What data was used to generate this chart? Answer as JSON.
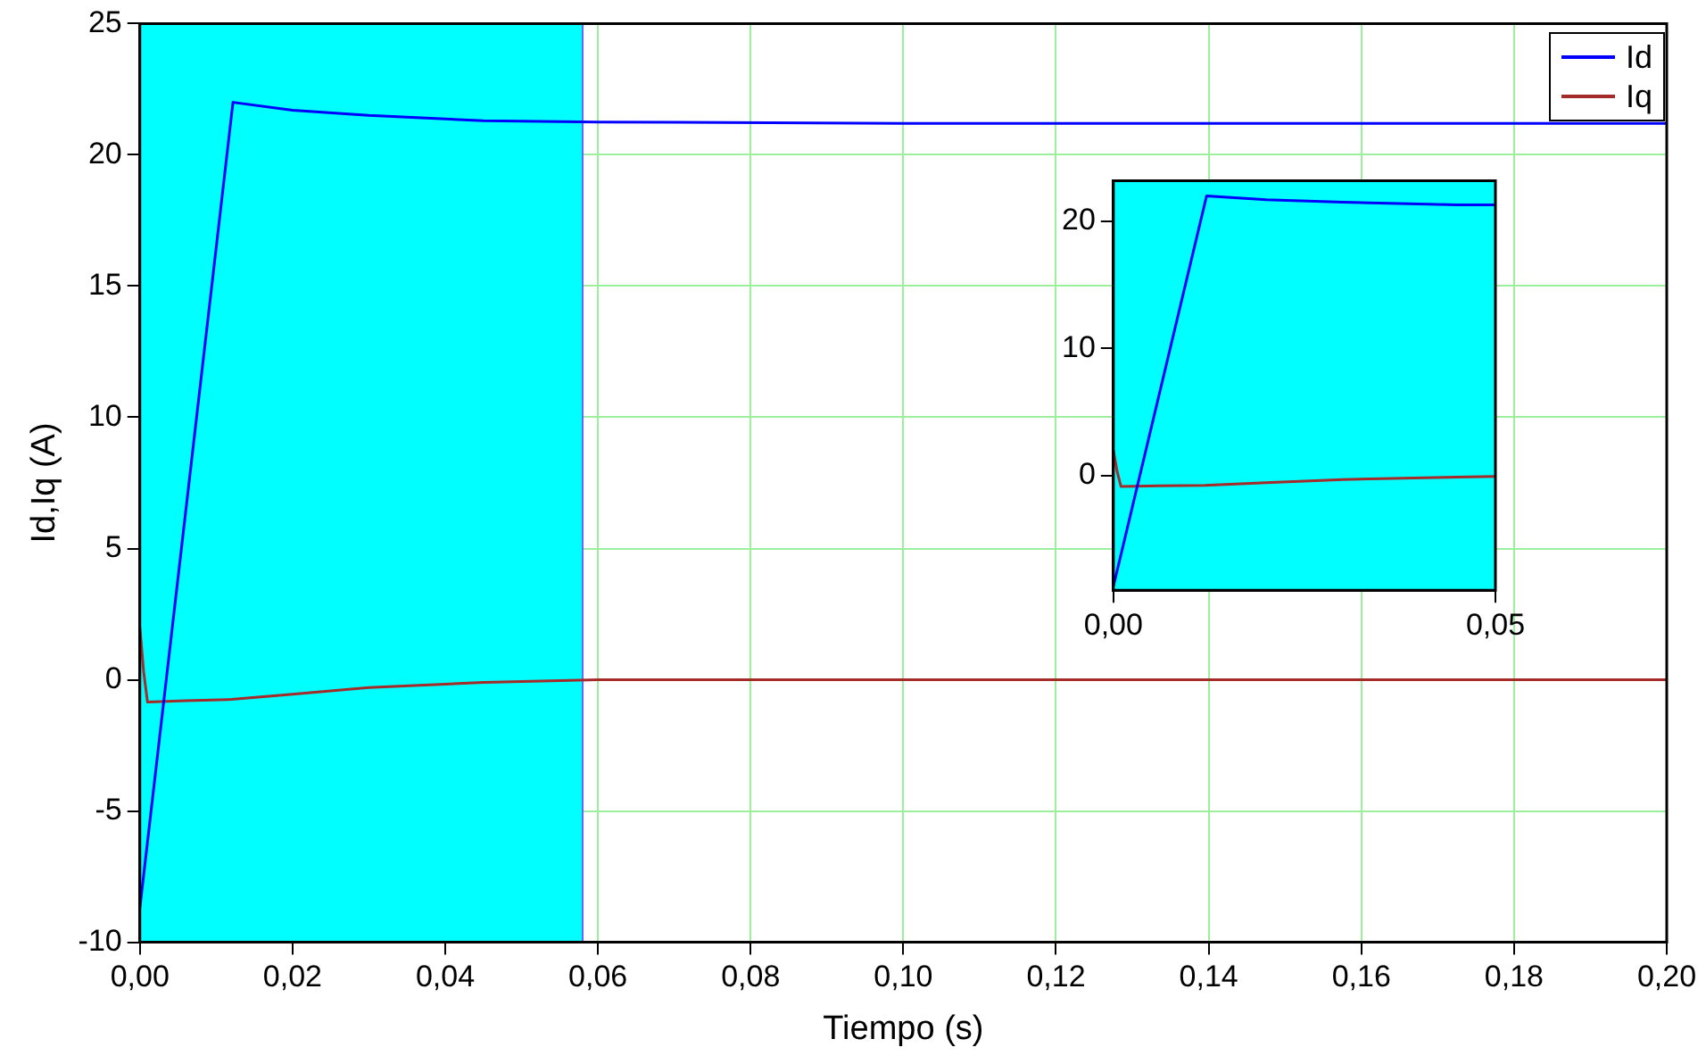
{
  "chart_data": [
    {
      "type": "line",
      "xlabel": "Tiempo (s)",
      "ylabel": "Id,Iq (A)",
      "xlim": [
        0,
        0.2
      ],
      "ylim": [
        -10,
        25
      ],
      "xticks": [
        {
          "value": 0,
          "label": "0,00"
        },
        {
          "value": 0.02,
          "label": "0,02"
        },
        {
          "value": 0.04,
          "label": "0,04"
        },
        {
          "value": 0.06,
          "label": "0,06"
        },
        {
          "value": 0.08,
          "label": "0,08"
        },
        {
          "value": 0.1,
          "label": "0,10"
        },
        {
          "value": 0.12,
          "label": "0,12"
        },
        {
          "value": 0.14,
          "label": "0,14"
        },
        {
          "value": 0.16,
          "label": "0,16"
        },
        {
          "value": 0.18,
          "label": "0,18"
        },
        {
          "value": 0.2,
          "label": "0,20"
        }
      ],
      "yticks": [
        -10,
        -5,
        0,
        5,
        10,
        15,
        20,
        25
      ],
      "grid": true,
      "legend": "top right",
      "marker": "none",
      "line_style": "solid",
      "bands": [
        {
          "axis": "x",
          "from": 0,
          "to": 0.058,
          "color": "#00ffff"
        }
      ],
      "series": [
        {
          "name": "Id",
          "color": "#0000ff",
          "x": [
            0,
            0.0122,
            0.02,
            0.03,
            0.045,
            0.06,
            0.1,
            0.2
          ],
          "values": [
            -8.7,
            22,
            21.7,
            21.5,
            21.3,
            21.25,
            21.2,
            21.2
          ]
        },
        {
          "name": "Iq",
          "color": "#a52a2a",
          "x": [
            0,
            0.0005,
            0.001,
            0.006,
            0.012,
            0.02,
            0.03,
            0.045,
            0.06,
            0.1,
            0.2
          ],
          "values": [
            2,
            0.3,
            -0.85,
            -0.8,
            -0.75,
            -0.55,
            -0.3,
            -0.1,
            0,
            0,
            0
          ]
        }
      ]
    },
    {
      "type": "line",
      "xlim": [
        0,
        0.05
      ],
      "ylim": [
        -9,
        23.2
      ],
      "xticks": [
        {
          "value": 0,
          "label": "0,00"
        },
        {
          "value": 0.05,
          "label": "0,05"
        }
      ],
      "yticks": [
        0,
        10,
        20
      ],
      "marker": "none",
      "line_style": "solid",
      "series": [
        {
          "color": "#0000ff",
          "x": [
            0,
            0.0122,
            0.02,
            0.03,
            0.045,
            0.05
          ],
          "values": [
            -8.7,
            22,
            21.7,
            21.5,
            21.3,
            21.3
          ]
        },
        {
          "color": "#a52a2a",
          "x": [
            0,
            0.0005,
            0.001,
            0.006,
            0.012,
            0.02,
            0.03,
            0.045,
            0.05
          ],
          "values": [
            2,
            0.3,
            -0.85,
            -0.8,
            -0.75,
            -0.55,
            -0.3,
            -0.1,
            -0.05
          ]
        }
      ]
    }
  ]
}
